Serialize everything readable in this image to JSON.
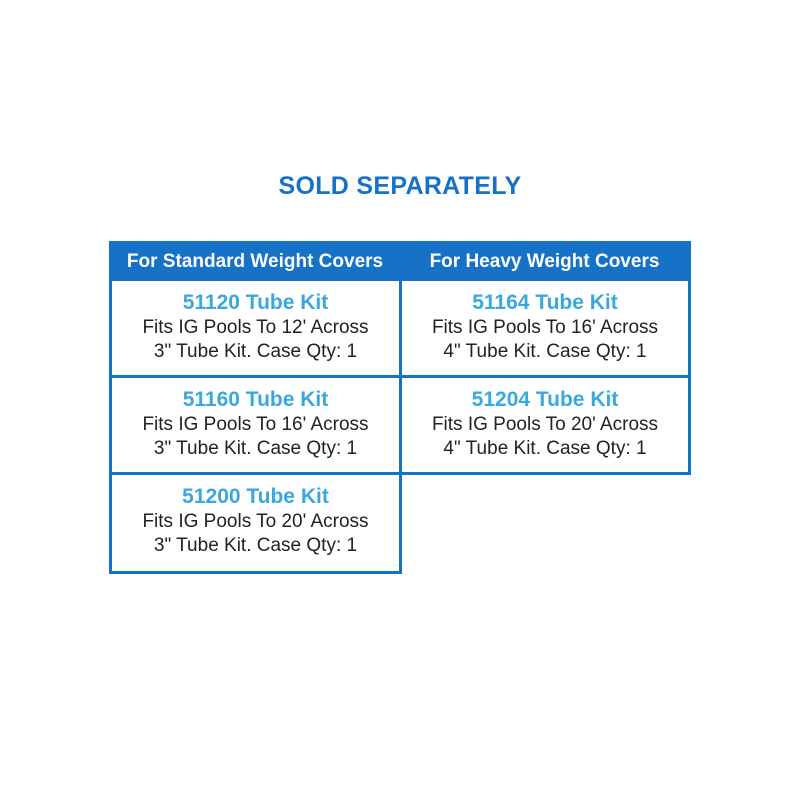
{
  "title": "SOLD SEPARATELY",
  "columns": [
    {
      "header": "For Standard Weight Covers",
      "items": [
        {
          "name": "51120 Tube Kit",
          "fit": "Fits IG Pools To 12' Across",
          "detail": "3\" Tube Kit. Case Qty: 1"
        },
        {
          "name": "51160 Tube Kit",
          "fit": "Fits IG Pools To 16' Across",
          "detail": "3\" Tube Kit. Case Qty: 1"
        },
        {
          "name": "51200 Tube Kit",
          "fit": "Fits IG Pools To 20' Across",
          "detail": "3\" Tube Kit. Case Qty: 1"
        }
      ]
    },
    {
      "header": "For Heavy Weight Covers",
      "items": [
        {
          "name": "51164 Tube Kit",
          "fit": "Fits IG Pools To 16' Across",
          "detail": "4\" Tube Kit. Case Qty: 1"
        },
        {
          "name": "51204 Tube Kit",
          "fit": "Fits IG Pools To 20' Across",
          "detail": "4\" Tube Kit. Case Qty: 1"
        }
      ]
    }
  ],
  "colors": {
    "header_bg": "#1572c6",
    "kit_name": "#3aa8dc",
    "text": "#222222"
  }
}
